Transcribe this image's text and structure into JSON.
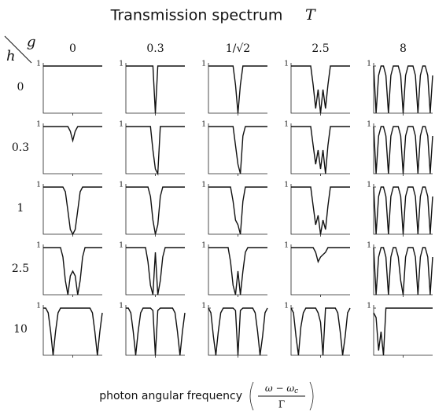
{
  "chart_data": {
    "type": "line",
    "title": "Transmission spectrum",
    "title_symbol": "T",
    "col_header": "g",
    "row_header": "h",
    "columns": [
      "0",
      "0.3",
      "1/√2",
      "2.5",
      "8"
    ],
    "rows": [
      "0",
      "0.3",
      "1",
      "2.5",
      "10"
    ],
    "xlabel": "photon angular frequency",
    "formula": {
      "numerator": [
        "ω − ω",
        "c"
      ],
      "denominator": "Γ"
    },
    "x": [
      -12,
      -11,
      -10,
      -9,
      -8,
      -7,
      -6,
      -5,
      -4,
      -3,
      -2,
      -1,
      0,
      1,
      2,
      3,
      4,
      5,
      6,
      7,
      8,
      9,
      10,
      11,
      12
    ],
    "xlim": [
      -12,
      12
    ],
    "xticks": [
      0
    ],
    "ylim": [
      0,
      1
    ],
    "yticks": [
      1
    ],
    "panels": [
      [
        [
          1,
          1,
          1,
          1,
          1,
          1,
          1,
          1,
          1,
          1,
          1,
          1,
          1,
          1,
          1,
          1,
          1,
          1,
          1,
          1,
          1,
          1,
          1,
          1,
          1
        ],
        [
          1,
          1,
          1,
          1,
          1,
          1,
          1,
          1,
          1,
          1,
          1,
          1,
          0,
          1,
          1,
          1,
          1,
          1,
          1,
          1,
          1,
          1,
          1,
          1,
          1
        ],
        [
          1,
          1,
          1,
          1,
          1,
          1,
          1,
          1,
          1,
          1,
          1,
          0.6,
          0,
          0.6,
          1,
          1,
          1,
          1,
          1,
          1,
          1,
          1,
          1,
          1,
          1
        ],
        [
          1,
          1,
          1,
          1,
          1,
          1,
          1,
          1,
          1,
          0.6,
          0.1,
          0.5,
          0,
          0.5,
          0.1,
          0.6,
          1,
          1,
          1,
          1,
          1,
          1,
          1,
          1,
          1
        ],
        [
          1,
          0,
          0.8,
          1,
          1,
          0.8,
          0,
          0.8,
          1,
          1,
          1,
          0.8,
          0,
          0.8,
          1,
          1,
          1,
          0.8,
          0,
          0.8,
          1,
          1,
          0.8,
          0,
          0.8
        ]
      ],
      [
        [
          1,
          1,
          1,
          1,
          1,
          1,
          1,
          1,
          1,
          1,
          1,
          0.9,
          0.7,
          0.9,
          1,
          1,
          1,
          1,
          1,
          1,
          1,
          1,
          1,
          1,
          1
        ],
        [
          1,
          1,
          1,
          1,
          1,
          1,
          1,
          1,
          1,
          1,
          1,
          0.5,
          0.1,
          0,
          1,
          1,
          1,
          1,
          1,
          1,
          1,
          1,
          1,
          1,
          1
        ],
        [
          1,
          1,
          1,
          1,
          1,
          1,
          1,
          1,
          1,
          1,
          1,
          0.6,
          0.2,
          0,
          0.8,
          1,
          1,
          1,
          1,
          1,
          1,
          1,
          1,
          1,
          1
        ],
        [
          1,
          1,
          1,
          1,
          1,
          1,
          1,
          1,
          1,
          0.6,
          0.2,
          0.5,
          0.1,
          0.5,
          0,
          0.6,
          1,
          1,
          1,
          1,
          1,
          1,
          1,
          1,
          1
        ],
        [
          1,
          0,
          0.8,
          1,
          1,
          0.8,
          0,
          0.8,
          1,
          1,
          1,
          0.8,
          0,
          0.8,
          1,
          1,
          1,
          0.8,
          0,
          0.8,
          1,
          1,
          0.8,
          0,
          0.8
        ]
      ],
      [
        [
          1,
          1,
          1,
          1,
          1,
          1,
          1,
          1,
          1,
          0.9,
          0.5,
          0.1,
          0,
          0.1,
          0.5,
          0.9,
          1,
          1,
          1,
          1,
          1,
          1,
          1,
          1,
          1
        ],
        [
          1,
          1,
          1,
          1,
          1,
          1,
          1,
          1,
          1,
          1,
          0.8,
          0.3,
          0,
          0.2,
          0.8,
          1,
          1,
          1,
          1,
          1,
          1,
          1,
          1,
          1,
          1
        ],
        [
          1,
          1,
          1,
          1,
          1,
          1,
          1,
          1,
          1,
          1,
          0.7,
          0.3,
          0.2,
          0,
          0.7,
          1,
          1,
          1,
          1,
          1,
          1,
          1,
          1,
          1,
          1
        ],
        [
          1,
          1,
          1,
          1,
          1,
          1,
          1,
          1,
          1,
          0.6,
          0.2,
          0.4,
          0,
          0.3,
          0.1,
          0.6,
          1,
          1,
          1,
          1,
          1,
          1,
          1,
          1,
          1
        ],
        [
          1,
          0,
          0.8,
          1,
          1,
          0.8,
          0,
          0.8,
          1,
          1,
          1,
          0.8,
          0,
          0.8,
          1,
          1,
          1,
          0.8,
          0,
          0.8,
          1,
          1,
          0.8,
          0,
          0.8
        ]
      ],
      [
        [
          1,
          1,
          1,
          1,
          1,
          1,
          1,
          1,
          0.8,
          0.3,
          0,
          0.4,
          0.5,
          0.4,
          0,
          0.3,
          0.8,
          1,
          1,
          1,
          1,
          1,
          1,
          1,
          1
        ],
        [
          1,
          1,
          1,
          1,
          1,
          1,
          1,
          1,
          1,
          0.7,
          0.2,
          0,
          0.9,
          0,
          0.3,
          0.8,
          1,
          1,
          1,
          1,
          1,
          1,
          1,
          1,
          1
        ],
        [
          1,
          1,
          1,
          1,
          1,
          1,
          1,
          1,
          1,
          0.7,
          0.2,
          0,
          0.5,
          0,
          0.5,
          0.9,
          1,
          1,
          1,
          1,
          1,
          1,
          1,
          1,
          1
        ],
        [
          1,
          1,
          1,
          1,
          1,
          1,
          1,
          1,
          1,
          1,
          0.9,
          0.7,
          0.8,
          0.85,
          0.9,
          1,
          1,
          1,
          1,
          1,
          1,
          1,
          1,
          1,
          1
        ],
        [
          1,
          0,
          0.8,
          1,
          1,
          0.8,
          0,
          0.8,
          1,
          1,
          0.8,
          0.3,
          0,
          0.8,
          1,
          1,
          1,
          0.8,
          0,
          0.8,
          1,
          1,
          0.8,
          0,
          0.8
        ]
      ],
      [
        [
          1,
          1,
          0.9,
          0.5,
          0,
          0.5,
          0.9,
          1,
          1,
          1,
          1,
          1,
          1,
          1,
          1,
          1,
          1,
          1,
          1,
          1,
          0.9,
          0.5,
          0,
          0.5,
          0.9
        ],
        [
          1,
          1,
          0.9,
          0.5,
          0,
          0.5,
          0.9,
          1,
          1,
          1,
          1,
          0.95,
          0,
          0.95,
          1,
          1,
          1,
          1,
          1,
          1,
          0.9,
          0.5,
          0,
          0.5,
          0.9
        ],
        [
          1,
          0.9,
          0.4,
          0,
          0.5,
          0.9,
          1,
          1,
          1,
          1,
          1,
          0.95,
          0,
          0.95,
          1,
          1,
          1,
          1,
          1,
          0.9,
          0.5,
          0,
          0.4,
          0.9,
          1
        ],
        [
          1,
          0.9,
          0.4,
          0,
          0.6,
          0.9,
          1,
          1,
          1,
          1,
          1,
          0.9,
          0.7,
          0,
          1,
          1,
          1,
          1,
          1,
          0.9,
          0.5,
          0,
          0.4,
          0.9,
          1
        ],
        [
          0.9,
          0.8,
          0.1,
          0.5,
          0,
          1,
          1,
          1,
          1,
          1,
          1,
          1,
          1,
          1,
          1,
          1,
          1,
          1,
          1,
          1,
          1,
          1,
          1,
          1,
          1
        ]
      ]
    ]
  }
}
